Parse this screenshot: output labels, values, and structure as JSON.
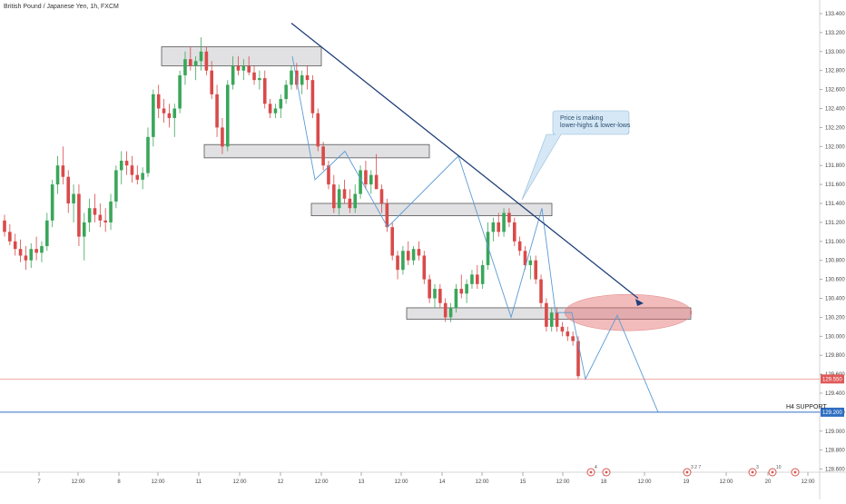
{
  "chart_data": {
    "type": "candlestick",
    "title": "British Pound / Japanese Yen, 1h, FXCM",
    "y_ticks": [
      "133.400",
      "133.200",
      "133.000",
      "132.800",
      "132.600",
      "132.400",
      "132.200",
      "132.000",
      "131.800",
      "131.600",
      "131.400",
      "131.200",
      "131.000",
      "130.800",
      "130.600",
      "130.400",
      "130.200",
      "130.000",
      "129.800",
      "129.600",
      "129.400",
      "129.200",
      "129.000",
      "128.800",
      "128.600"
    ],
    "x_ticks": [
      "7",
      "12:00",
      "8",
      "12:00",
      "11",
      "12:00",
      "12",
      "12:00",
      "13",
      "12:00",
      "14",
      "12:00",
      "15",
      "12:00",
      "18",
      "12:00",
      "19",
      "12:00",
      "20",
      "12:00"
    ],
    "ylim": [
      128.5,
      133.5
    ],
    "price_label": "129.550",
    "support_price_label": "129.200",
    "support_label": "H4 SUPPORT",
    "annotation": "Price is making lower-highs & lower-lows",
    "candles": [
      {
        "o": 131.22,
        "h": 131.28,
        "l": 131.05,
        "c": 131.1
      },
      {
        "o": 131.1,
        "h": 131.18,
        "l": 130.96,
        "c": 131.0
      },
      {
        "o": 131.0,
        "h": 131.08,
        "l": 130.85,
        "c": 130.92
      },
      {
        "o": 130.92,
        "h": 131.02,
        "l": 130.78,
        "c": 130.85
      },
      {
        "o": 130.85,
        "h": 130.95,
        "l": 130.7,
        "c": 130.8
      },
      {
        "o": 130.8,
        "h": 130.98,
        "l": 130.72,
        "c": 130.92
      },
      {
        "o": 130.92,
        "h": 131.05,
        "l": 130.8,
        "c": 130.88
      },
      {
        "o": 130.88,
        "h": 131.0,
        "l": 130.78,
        "c": 130.95
      },
      {
        "o": 130.95,
        "h": 131.3,
        "l": 130.9,
        "c": 131.22
      },
      {
        "o": 131.22,
        "h": 131.65,
        "l": 131.15,
        "c": 131.6
      },
      {
        "o": 131.6,
        "h": 131.9,
        "l": 131.5,
        "c": 131.8
      },
      {
        "o": 131.8,
        "h": 132.0,
        "l": 131.6,
        "c": 131.68
      },
      {
        "o": 131.68,
        "h": 131.75,
        "l": 131.3,
        "c": 131.4
      },
      {
        "o": 131.4,
        "h": 131.6,
        "l": 131.2,
        "c": 131.5
      },
      {
        "o": 131.5,
        "h": 131.6,
        "l": 130.95,
        "c": 131.05
      },
      {
        "o": 131.05,
        "h": 131.3,
        "l": 130.8,
        "c": 131.2
      },
      {
        "o": 131.2,
        "h": 131.45,
        "l": 131.1,
        "c": 131.35
      },
      {
        "o": 131.35,
        "h": 131.5,
        "l": 131.2,
        "c": 131.28
      },
      {
        "o": 131.28,
        "h": 131.4,
        "l": 131.15,
        "c": 131.22
      },
      {
        "o": 131.22,
        "h": 131.35,
        "l": 131.1,
        "c": 131.2
      },
      {
        "o": 131.2,
        "h": 131.5,
        "l": 131.12,
        "c": 131.42
      },
      {
        "o": 131.42,
        "h": 131.8,
        "l": 131.35,
        "c": 131.75
      },
      {
        "o": 131.75,
        "h": 131.95,
        "l": 131.6,
        "c": 131.85
      },
      {
        "o": 131.85,
        "h": 131.95,
        "l": 131.7,
        "c": 131.8
      },
      {
        "o": 131.8,
        "h": 131.9,
        "l": 131.62,
        "c": 131.7
      },
      {
        "o": 131.7,
        "h": 131.8,
        "l": 131.6,
        "c": 131.65
      },
      {
        "o": 131.65,
        "h": 131.78,
        "l": 131.55,
        "c": 131.72
      },
      {
        "o": 131.72,
        "h": 132.2,
        "l": 131.68,
        "c": 132.1
      },
      {
        "o": 132.1,
        "h": 132.6,
        "l": 132.0,
        "c": 132.55
      },
      {
        "o": 132.55,
        "h": 132.65,
        "l": 132.3,
        "c": 132.4
      },
      {
        "o": 132.4,
        "h": 132.5,
        "l": 132.25,
        "c": 132.35
      },
      {
        "o": 132.35,
        "h": 132.45,
        "l": 132.2,
        "c": 132.3
      },
      {
        "o": 132.3,
        "h": 132.45,
        "l": 132.1,
        "c": 132.4
      },
      {
        "o": 132.4,
        "h": 132.8,
        "l": 132.35,
        "c": 132.75
      },
      {
        "o": 132.75,
        "h": 133.0,
        "l": 132.65,
        "c": 132.92
      },
      {
        "o": 132.92,
        "h": 133.05,
        "l": 132.8,
        "c": 132.85
      },
      {
        "o": 132.85,
        "h": 132.95,
        "l": 132.7,
        "c": 132.9
      },
      {
        "o": 132.9,
        "h": 133.15,
        "l": 132.8,
        "c": 133.0
      },
      {
        "o": 133.0,
        "h": 133.05,
        "l": 132.75,
        "c": 132.8
      },
      {
        "o": 132.8,
        "h": 132.9,
        "l": 132.5,
        "c": 132.55
      },
      {
        "o": 132.55,
        "h": 132.65,
        "l": 132.1,
        "c": 132.2
      },
      {
        "o": 132.2,
        "h": 132.3,
        "l": 131.92,
        "c": 132.0
      },
      {
        "o": 132.0,
        "h": 132.7,
        "l": 131.95,
        "c": 132.65
      },
      {
        "o": 132.65,
        "h": 132.95,
        "l": 132.6,
        "c": 132.85
      },
      {
        "o": 132.85,
        "h": 132.95,
        "l": 132.75,
        "c": 132.8
      },
      {
        "o": 132.8,
        "h": 132.92,
        "l": 132.7,
        "c": 132.85
      },
      {
        "o": 132.85,
        "h": 132.95,
        "l": 132.75,
        "c": 132.78
      },
      {
        "o": 132.78,
        "h": 132.85,
        "l": 132.65,
        "c": 132.7
      },
      {
        "o": 132.7,
        "h": 132.8,
        "l": 132.6,
        "c": 132.72
      },
      {
        "o": 132.72,
        "h": 132.8,
        "l": 132.4,
        "c": 132.45
      },
      {
        "o": 132.45,
        "h": 132.5,
        "l": 132.3,
        "c": 132.35
      },
      {
        "o": 132.35,
        "h": 132.45,
        "l": 132.3,
        "c": 132.4
      },
      {
        "o": 132.4,
        "h": 132.55,
        "l": 132.3,
        "c": 132.5
      },
      {
        "o": 132.5,
        "h": 132.7,
        "l": 132.45,
        "c": 132.65
      },
      {
        "o": 132.65,
        "h": 132.85,
        "l": 132.6,
        "c": 132.8
      },
      {
        "o": 132.8,
        "h": 132.88,
        "l": 132.6,
        "c": 132.65
      },
      {
        "o": 132.65,
        "h": 132.8,
        "l": 132.55,
        "c": 132.75
      },
      {
        "o": 132.75,
        "h": 132.85,
        "l": 132.6,
        "c": 132.7
      },
      {
        "o": 132.7,
        "h": 132.75,
        "l": 132.3,
        "c": 132.35
      },
      {
        "o": 132.35,
        "h": 132.4,
        "l": 131.95,
        "c": 132.0
      },
      {
        "o": 132.0,
        "h": 132.05,
        "l": 131.75,
        "c": 131.8
      },
      {
        "o": 131.8,
        "h": 131.85,
        "l": 131.55,
        "c": 131.6
      },
      {
        "o": 131.6,
        "h": 131.7,
        "l": 131.3,
        "c": 131.35
      },
      {
        "o": 131.35,
        "h": 131.6,
        "l": 131.28,
        "c": 131.55
      },
      {
        "o": 131.55,
        "h": 131.65,
        "l": 131.4,
        "c": 131.45
      },
      {
        "o": 131.45,
        "h": 131.55,
        "l": 131.3,
        "c": 131.35
      },
      {
        "o": 131.35,
        "h": 131.6,
        "l": 131.3,
        "c": 131.5
      },
      {
        "o": 131.5,
        "h": 131.8,
        "l": 131.45,
        "c": 131.75
      },
      {
        "o": 131.75,
        "h": 131.85,
        "l": 131.55,
        "c": 131.6
      },
      {
        "o": 131.6,
        "h": 131.75,
        "l": 131.5,
        "c": 131.7
      },
      {
        "o": 131.7,
        "h": 131.92,
        "l": 131.6,
        "c": 131.55
      },
      {
        "o": 131.55,
        "h": 131.6,
        "l": 131.3,
        "c": 131.4
      },
      {
        "o": 131.4,
        "h": 131.45,
        "l": 131.1,
        "c": 131.15
      },
      {
        "o": 131.15,
        "h": 131.2,
        "l": 130.8,
        "c": 130.85
      },
      {
        "o": 130.85,
        "h": 130.9,
        "l": 130.6,
        "c": 130.7
      },
      {
        "o": 130.7,
        "h": 130.95,
        "l": 130.65,
        "c": 130.9
      },
      {
        "o": 130.9,
        "h": 131.0,
        "l": 130.75,
        "c": 130.8
      },
      {
        "o": 130.8,
        "h": 130.95,
        "l": 130.75,
        "c": 130.92
      },
      {
        "o": 130.92,
        "h": 131.0,
        "l": 130.8,
        "c": 130.85
      },
      {
        "o": 130.85,
        "h": 130.9,
        "l": 130.55,
        "c": 130.6
      },
      {
        "o": 130.6,
        "h": 130.65,
        "l": 130.35,
        "c": 130.4
      },
      {
        "o": 130.4,
        "h": 130.55,
        "l": 130.3,
        "c": 130.5
      },
      {
        "o": 130.5,
        "h": 130.55,
        "l": 130.3,
        "c": 130.35
      },
      {
        "o": 130.35,
        "h": 130.4,
        "l": 130.15,
        "c": 130.2
      },
      {
        "o": 130.2,
        "h": 130.35,
        "l": 130.15,
        "c": 130.3
      },
      {
        "o": 130.3,
        "h": 130.55,
        "l": 130.25,
        "c": 130.5
      },
      {
        "o": 130.5,
        "h": 130.65,
        "l": 130.4,
        "c": 130.45
      },
      {
        "o": 130.45,
        "h": 130.6,
        "l": 130.35,
        "c": 130.55
      },
      {
        "o": 130.55,
        "h": 130.7,
        "l": 130.5,
        "c": 130.65
      },
      {
        "o": 130.65,
        "h": 130.75,
        "l": 130.5,
        "c": 130.55
      },
      {
        "o": 130.55,
        "h": 130.8,
        "l": 130.5,
        "c": 130.75
      },
      {
        "o": 130.75,
        "h": 131.2,
        "l": 130.7,
        "c": 131.1
      },
      {
        "o": 131.1,
        "h": 131.25,
        "l": 131.0,
        "c": 131.2
      },
      {
        "o": 131.2,
        "h": 131.3,
        "l": 131.05,
        "c": 131.1
      },
      {
        "o": 131.1,
        "h": 131.35,
        "l": 131.05,
        "c": 131.3
      },
      {
        "o": 131.3,
        "h": 131.35,
        "l": 131.15,
        "c": 131.2
      },
      {
        "o": 131.2,
        "h": 131.25,
        "l": 130.95,
        "c": 131.0
      },
      {
        "o": 131.0,
        "h": 131.05,
        "l": 130.85,
        "c": 130.9
      },
      {
        "o": 130.9,
        "h": 130.95,
        "l": 130.7,
        "c": 130.75
      },
      {
        "o": 130.75,
        "h": 130.85,
        "l": 130.6,
        "c": 130.8
      },
      {
        "o": 130.8,
        "h": 130.85,
        "l": 130.55,
        "c": 130.6
      },
      {
        "o": 130.6,
        "h": 130.65,
        "l": 130.3,
        "c": 130.35
      },
      {
        "o": 130.35,
        "h": 130.4,
        "l": 130.05,
        "c": 130.1
      },
      {
        "o": 130.1,
        "h": 130.3,
        "l": 130.05,
        "c": 130.25
      },
      {
        "o": 130.25,
        "h": 130.3,
        "l": 130.05,
        "c": 130.1
      },
      {
        "o": 130.1,
        "h": 130.15,
        "l": 130.0,
        "c": 130.05
      },
      {
        "o": 130.05,
        "h": 130.1,
        "l": 129.95,
        "c": 130.0
      },
      {
        "o": 130.0,
        "h": 130.05,
        "l": 129.9,
        "c": 129.95
      },
      {
        "o": 129.95,
        "h": 130.0,
        "l": 129.55,
        "c": 129.58
      }
    ],
    "zones": [
      {
        "x0": 178,
        "x1": 354,
        "p0": 133.05,
        "p1": 132.85
      },
      {
        "x0": 225,
        "x1": 473,
        "p0": 132.02,
        "p1": 131.88
      },
      {
        "x0": 343,
        "x1": 608,
        "p0": 131.4,
        "p1": 131.27
      },
      {
        "x0": 448,
        "x1": 761,
        "p0": 130.3,
        "p1": 130.18
      }
    ],
    "trendline": {
      "p0": 133.3,
      "p1": 130.4
    },
    "zigzag": [
      132.95,
      131.65,
      131.95,
      131.15,
      131.9,
      130.2,
      131.35,
      130.25,
      130.25,
      129.55,
      130.22,
      129.2
    ],
    "projection_ellipse": {
      "cp": 130.25
    },
    "colors": {
      "up": "#3aa65a",
      "down": "#d94a4a",
      "zone_fill": "#c8c8cc",
      "zone_stroke": "#555",
      "trend": "#1f3f7a",
      "zigzag": "#5b9bd5",
      "ellipse": "#e46a6a",
      "support": "#2f6ec2",
      "price": "#e05a5a"
    },
    "event_icons": [
      "4",
      "3 2 7",
      "3",
      "10"
    ]
  }
}
